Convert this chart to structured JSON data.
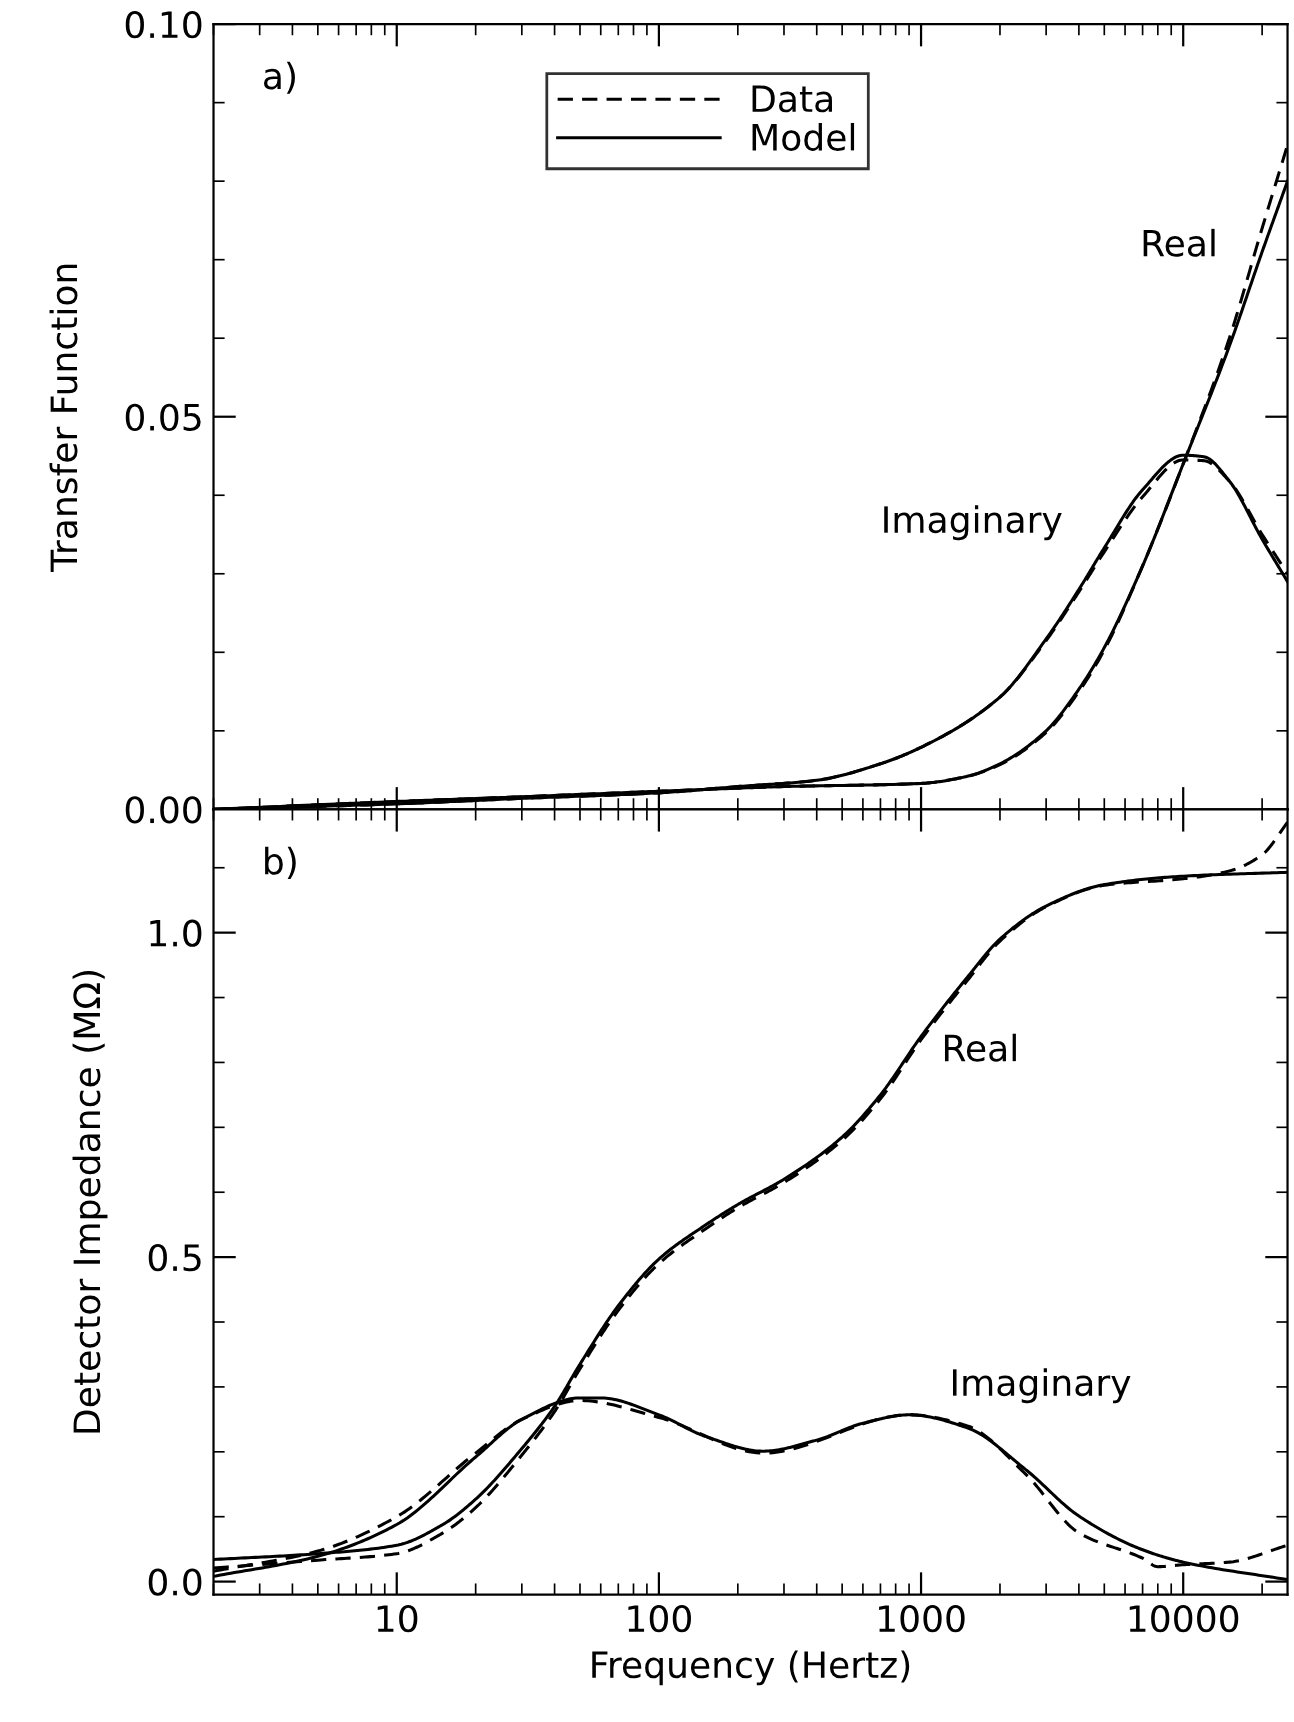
{
  "chart_data": [
    {
      "type": "line",
      "ylabel": "Transfer Function",
      "log": "x",
      "xlim": [
        2,
        25000
      ],
      "ylim": [
        0,
        0.1
      ],
      "xticks": [
        10,
        100,
        1000,
        10000
      ],
      "yticks": [
        {
          "value": 0,
          "label": "0.00"
        },
        0.05,
        {
          "value": 0.1,
          "label": "0.10"
        }
      ],
      "tick_labels": "y",
      "grid": false,
      "legend": "top",
      "marker": "none",
      "annotations": [
        "a)",
        "Real",
        "Imaginary"
      ],
      "series": [
        {
          "name": "Data",
          "color": "#000000",
          "line_style": "dashed",
          "x": [
            2,
            10,
            30,
            100,
            300,
            1000,
            1500,
            2000,
            3000,
            4000,
            5000,
            7000,
            10000,
            15000,
            20000,
            25000
          ],
          "values": [
            0.0,
            0.001,
            0.0016,
            0.0023,
            0.0029,
            0.0033,
            0.0042,
            0.0057,
            0.0098,
            0.015,
            0.0203,
            0.031,
            0.044,
            0.06,
            0.074,
            0.0846
          ]
        },
        {
          "name": "Model",
          "color": "#000000",
          "line_style": "solid",
          "x": [
            2,
            10,
            30,
            100,
            300,
            1000,
            1500,
            2000,
            3000,
            4000,
            5000,
            7000,
            10000,
            15000,
            20000,
            25000
          ],
          "values": [
            0.0,
            0.001,
            0.0016,
            0.0023,
            0.0029,
            0.0033,
            0.0042,
            0.0058,
            0.01,
            0.0153,
            0.0206,
            0.031,
            0.044,
            0.059,
            0.071,
            0.08
          ]
        },
        {
          "color": "#000000",
          "line_style": "dashed",
          "x": [
            2,
            10,
            30,
            100,
            200,
            400,
            700,
            1000,
            2000,
            3000,
            4000,
            5000,
            7000,
            10000,
            12000,
            15000,
            20000,
            25000
          ],
          "values": [
            0.0,
            0.0007,
            0.0014,
            0.0021,
            0.0029,
            0.0037,
            0.0058,
            0.0079,
            0.0143,
            0.0215,
            0.0277,
            0.0328,
            0.0398,
            0.0445,
            0.0444,
            0.0418,
            0.035,
            0.03
          ]
        },
        {
          "color": "#000000",
          "line_style": "solid",
          "x": [
            2,
            10,
            30,
            100,
            200,
            400,
            700,
            1000,
            2000,
            3000,
            4000,
            5000,
            7000,
            10000,
            12000,
            15000,
            20000,
            25000
          ],
          "values": [
            0.0,
            0.0007,
            0.0014,
            0.0021,
            0.0029,
            0.0037,
            0.0058,
            0.0079,
            0.0143,
            0.0217,
            0.028,
            0.0333,
            0.0407,
            0.0451,
            0.0449,
            0.0418,
            0.0344,
            0.029
          ]
        }
      ]
    },
    {
      "type": "line",
      "xlabel": "Frequency (Hertz)",
      "ylabel": "Detector Impedance (MΩ)",
      "log": "x",
      "xlim": [
        2,
        25000
      ],
      "ylim": [
        -0.02,
        1.19
      ],
      "xticks": [
        10,
        100,
        1000,
        10000
      ],
      "yticks": [
        {
          "value": 0,
          "label": "0.0"
        },
        0.5,
        {
          "value": 1,
          "label": "1.0"
        }
      ],
      "grid": false,
      "legend": false,
      "marker": "none",
      "annotations": [
        "b)",
        "Real",
        "Imaginary"
      ],
      "series": [
        {
          "color": "#000000",
          "line_style": "dashed",
          "x": [
            2,
            5,
            10,
            15,
            20,
            30,
            40,
            50,
            70,
            100,
            150,
            200,
            300,
            500,
            700,
            1000,
            1500,
            2000,
            3000,
            5000,
            10000,
            15000,
            20000,
            25000
          ],
          "values": [
            0.021,
            0.033,
            0.043,
            0.075,
            0.114,
            0.195,
            0.262,
            0.328,
            0.418,
            0.49,
            0.543,
            0.576,
            0.615,
            0.68,
            0.744,
            0.835,
            0.926,
            0.987,
            1.04,
            1.073,
            1.083,
            1.095,
            1.12,
            1.17
          ]
        },
        {
          "color": "#000000",
          "line_style": "solid",
          "x": [
            2,
            5,
            10,
            15,
            20,
            30,
            40,
            50,
            70,
            100,
            150,
            200,
            300,
            500,
            700,
            1000,
            1500,
            2000,
            3000,
            5000,
            10000,
            25000
          ],
          "values": [
            0.034,
            0.043,
            0.056,
            0.088,
            0.127,
            0.205,
            0.27,
            0.335,
            0.425,
            0.497,
            0.549,
            0.581,
            0.62,
            0.685,
            0.75,
            0.84,
            0.931,
            0.99,
            1.041,
            1.074,
            1.087,
            1.093
          ]
        },
        {
          "color": "#000000",
          "line_style": "dashed",
          "x": [
            2,
            5,
            10,
            20,
            30,
            50,
            100,
            250,
            900,
            1500,
            2500,
            4000,
            7000,
            8000,
            10000,
            15000,
            25000
          ],
          "values": [
            0.016,
            0.047,
            0.1,
            0.198,
            0.25,
            0.279,
            0.253,
            0.198,
            0.257,
            0.24,
            0.166,
            0.075,
            0.036,
            0.023,
            0.026,
            0.03,
            0.056
          ]
        },
        {
          "color": "#000000",
          "line_style": "solid",
          "x": [
            2,
            5,
            10,
            20,
            30,
            50,
            60,
            100,
            150,
            250,
            400,
            600,
            900,
            1500,
            2500,
            4000,
            7000,
            10000,
            25000
          ],
          "values": [
            0.008,
            0.039,
            0.088,
            0.192,
            0.25,
            0.283,
            0.283,
            0.257,
            0.224,
            0.201,
            0.218,
            0.244,
            0.257,
            0.237,
            0.173,
            0.101,
            0.049,
            0.03,
            0.003
          ]
        }
      ]
    }
  ]
}
